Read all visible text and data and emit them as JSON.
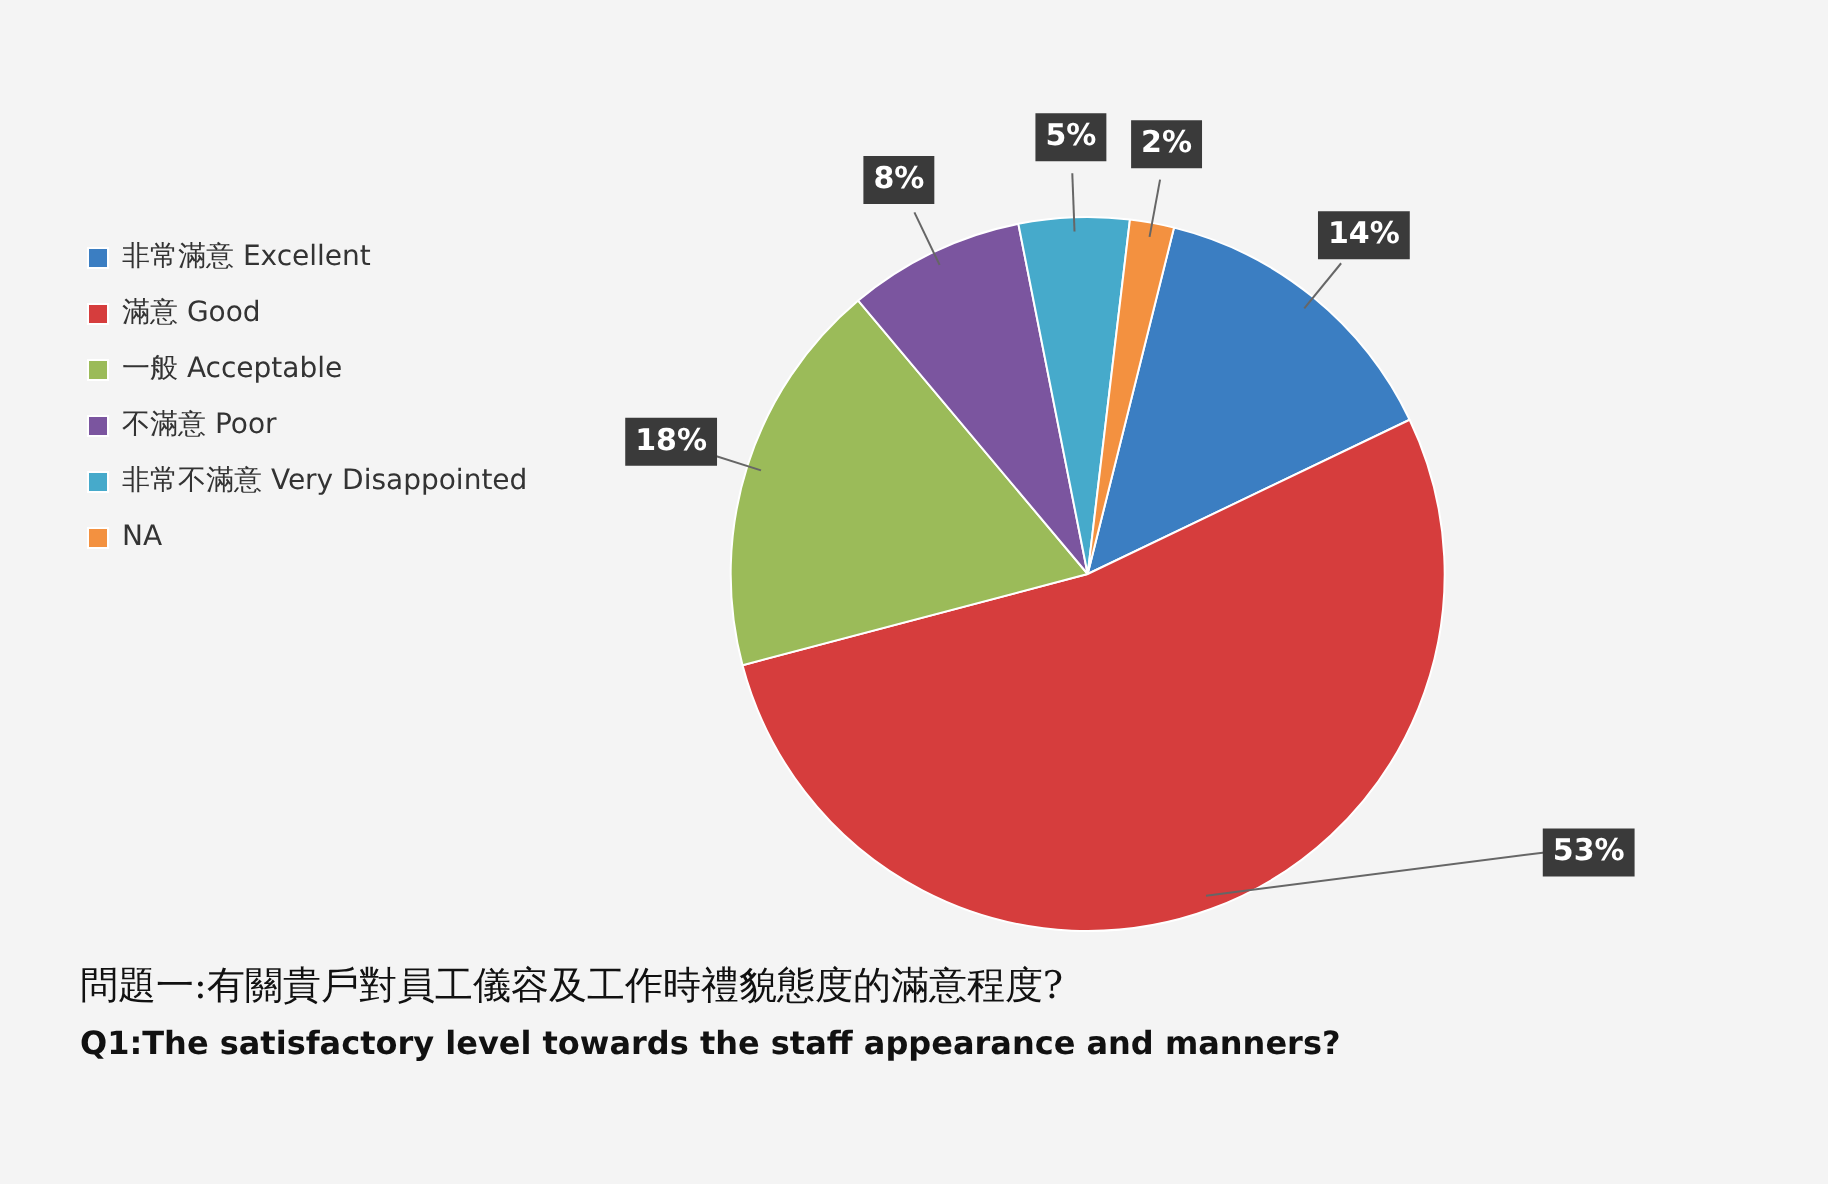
{
  "chart_data": {
    "type": "pie",
    "title": "問題一:有關貴戶對員工儀容及工作時禮貌態度的滿意程度?",
    "subtitle": "Q1:The satisfactory level towards the staff appearance and manners?",
    "categories": [
      "非常滿意 Excellent",
      "滿意 Good",
      "一般 Acceptable",
      "不滿意 Poor",
      "非常不滿意 Very Disappointed",
      "NA"
    ],
    "values": [
      14,
      53,
      18,
      8,
      5,
      2
    ],
    "value_labels": [
      "14%",
      "53%",
      "18%",
      "8%",
      "5%",
      "2%"
    ],
    "colors": [
      "#3b7ec2",
      "#d63d3d",
      "#9bbb59",
      "#7b559f",
      "#46aacb",
      "#f39140"
    ],
    "legend": "top left"
  }
}
